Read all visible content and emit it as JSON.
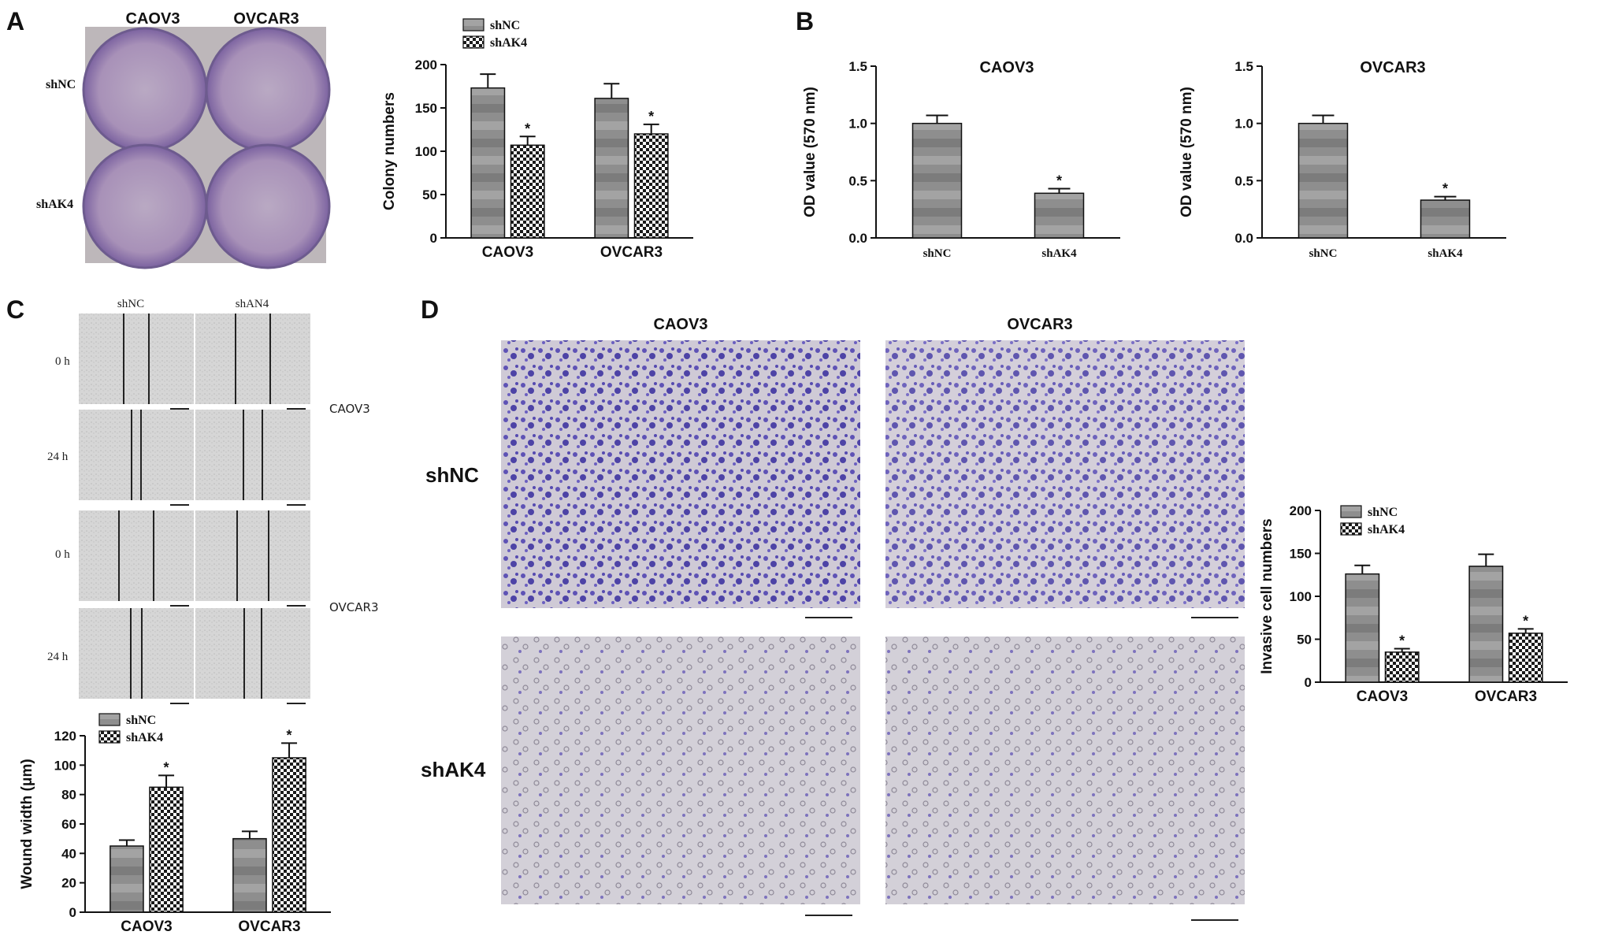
{
  "panels": {
    "A": {
      "letter": "A",
      "photo": {
        "col_labels": [
          "CAOV3",
          "OVCAR3"
        ],
        "row_labels": [
          "shNC",
          "shAK4"
        ]
      }
    },
    "B": {
      "letter": "B"
    },
    "C": {
      "letter": "C",
      "wound": {
        "col_labels": [
          "shNC",
          "shAN4"
        ],
        "time_labels": [
          "0 h",
          "24 h",
          "0 h",
          "24 h"
        ],
        "cell_labels": [
          "CAOV3",
          "OVCAR3"
        ]
      }
    },
    "D": {
      "letter": "D",
      "photo": {
        "col_labels": [
          "CAOV3",
          "OVCAR3"
        ],
        "row_labels": [
          "shNC",
          "shAK4"
        ]
      }
    }
  },
  "colors": {
    "shNC_fill": "#8a8a8a",
    "shAK4_fill": "#ffffff",
    "photo_stain": "#5a4fb0",
    "plate_bg": "#c9c4c6"
  },
  "chart_data": [
    {
      "id": "colony",
      "type": "bar",
      "title": "",
      "categories": [
        "CAOV3",
        "OVCAR3"
      ],
      "ylabel": "Colony numbers",
      "ylim": [
        0,
        200
      ],
      "yticks": [
        "0",
        "50",
        "100",
        "150",
        "200"
      ],
      "series": [
        {
          "name": "shNC",
          "values": [
            173,
            161
          ],
          "errors": [
            16,
            17
          ],
          "sig": [
            "",
            ""
          ]
        },
        {
          "name": "shAK4",
          "values": [
            107,
            120
          ],
          "errors": [
            10,
            11
          ],
          "sig": [
            "*",
            "*"
          ]
        }
      ],
      "legend": "top-left"
    },
    {
      "id": "od_caov3",
      "type": "bar",
      "title": "CAOV3",
      "categories": [
        "shNC",
        "shAK4"
      ],
      "ylabel": "OD value (570 nm)",
      "ylim": [
        0,
        1.5
      ],
      "yticks": [
        "0.0",
        "0.5",
        "1.0",
        "1.5"
      ],
      "values": [
        1.0,
        0.39
      ],
      "errors": [
        0.07,
        0.04
      ],
      "sig": [
        "",
        "*"
      ]
    },
    {
      "id": "od_ovcar3",
      "type": "bar",
      "title": "OVCAR3",
      "categories": [
        "shNC",
        "shAK4"
      ],
      "ylabel": "OD value (570 nm)",
      "ylim": [
        0,
        1.5
      ],
      "yticks": [
        "0.0",
        "0.5",
        "1.0",
        "1.5"
      ],
      "values": [
        1.0,
        0.33
      ],
      "errors": [
        0.07,
        0.03
      ],
      "sig": [
        "",
        "*"
      ]
    },
    {
      "id": "wound",
      "type": "bar",
      "title": "",
      "categories": [
        "CAOV3",
        "OVCAR3"
      ],
      "ylabel": "Wound width (μm)",
      "ylim": [
        0,
        120
      ],
      "yticks": [
        "0",
        "20",
        "40",
        "60",
        "80",
        "100",
        "120"
      ],
      "series": [
        {
          "name": "shNC",
          "values": [
            45,
            50
          ],
          "errors": [
            4,
            5
          ],
          "sig": [
            "",
            ""
          ]
        },
        {
          "name": "shAK4",
          "values": [
            85,
            105
          ],
          "errors": [
            8,
            10
          ],
          "sig": [
            "*",
            "*"
          ]
        }
      ],
      "legend": "top-left"
    },
    {
      "id": "invasive",
      "type": "bar",
      "title": "",
      "categories": [
        "CAOV3",
        "OVCAR3"
      ],
      "ylabel": "Invasive cell numbers",
      "ylim": [
        0,
        200
      ],
      "yticks": [
        "0",
        "50",
        "100",
        "150",
        "200"
      ],
      "series": [
        {
          "name": "shNC",
          "values": [
            126,
            135
          ],
          "errors": [
            10,
            14
          ],
          "sig": [
            "",
            ""
          ]
        },
        {
          "name": "shAK4",
          "values": [
            35,
            57
          ],
          "errors": [
            4,
            5
          ],
          "sig": [
            "*",
            "*"
          ]
        }
      ],
      "legend": "top-left"
    }
  ]
}
